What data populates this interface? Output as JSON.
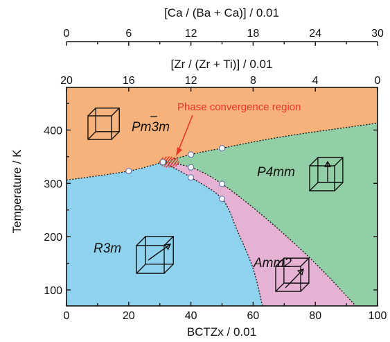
{
  "chart_data": {
    "type": "phase-diagram",
    "xlabel": "BCTZx / 0.01",
    "ylabel": "Temperature / K",
    "xlim": [
      0,
      100
    ],
    "ylim": [
      70,
      480
    ],
    "x_ticks": [
      0,
      20,
      40,
      60,
      80,
      100
    ],
    "y_ticks": [
      100,
      200,
      300,
      400
    ],
    "top_axis_1": {
      "label": "[Ca / (Ba + Ca)] / 0.01",
      "ticks": [
        0,
        6,
        12,
        18,
        24,
        30
      ]
    },
    "top_axis_2": {
      "label": "[Zr / (Zr + Ti)] / 0.01",
      "ticks": [
        20,
        16,
        12,
        8,
        4,
        0
      ]
    },
    "phases": [
      {
        "name": "Pm3̄m",
        "color": "#f6b27a"
      },
      {
        "name": "P4mm",
        "color": "#93cfa6"
      },
      {
        "name": "R3m",
        "color": "#8fd2ee"
      },
      {
        "name": "Amm2",
        "color": "#e6b2d3"
      }
    ],
    "annotation": "Phase convergence region",
    "annotation_color": "#e8362a",
    "data_points": [
      {
        "x": 20,
        "y": 323
      },
      {
        "x": 31,
        "y": 340
      },
      {
        "x": 40,
        "y": 354
      },
      {
        "x": 40,
        "y": 330
      },
      {
        "x": 40,
        "y": 311
      },
      {
        "x": 50,
        "y": 366
      },
      {
        "x": 50,
        "y": 299
      },
      {
        "x": 50,
        "y": 271
      }
    ],
    "boundaries": {
      "cubic_tetragonal": [
        [
          31,
          340
        ],
        [
          40,
          354
        ],
        [
          50,
          366
        ],
        [
          70,
          388
        ],
        [
          100,
          413
        ]
      ],
      "cubic_rhombohedral": [
        [
          0,
          306
        ],
        [
          20,
          323
        ],
        [
          31,
          340
        ]
      ],
      "rhombohedral_orthorhombic": [
        [
          31,
          340
        ],
        [
          40,
          311
        ],
        [
          50,
          271
        ],
        [
          55,
          210
        ],
        [
          60,
          140
        ],
        [
          63,
          70
        ]
      ],
      "orthorhombic_tetragonal": [
        [
          31,
          340
        ],
        [
          40,
          330
        ],
        [
          50,
          299
        ],
        [
          65,
          230
        ],
        [
          80,
          150
        ],
        [
          93,
          70
        ]
      ]
    }
  }
}
